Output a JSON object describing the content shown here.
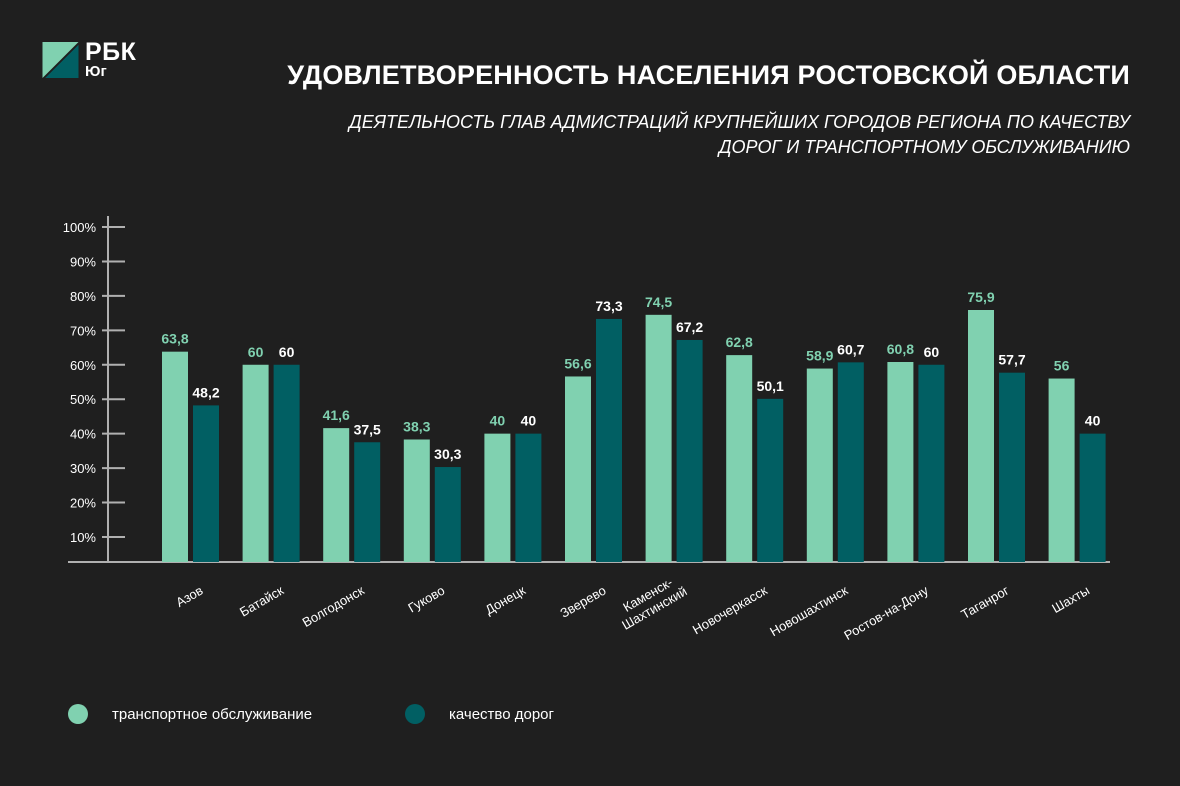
{
  "logo": {
    "name": "РБК",
    "sub": "Юг"
  },
  "title": "УДОВЛЕТВОРЕННОСТЬ НАСЕЛЕНИЯ РОСТОВСКОЙ ОБЛАСТИ",
  "subtitle": "ДЕЯТЕЛЬНОСТЬ ГЛАВ АДМИСТРАЦИЙ КРУПНЕЙШИХ ГОРОДОВ РЕГИОНА ПО КАЧЕСТВУ ДОРОГ И ТРАНСПОРТНОМУ ОБСЛУЖИВАНИЮ",
  "colors": {
    "transport": "#80d1b0",
    "roads": "#015f63",
    "background": "#1f1f1f",
    "axis": "#b0b0b0"
  },
  "chart_data": {
    "type": "bar",
    "categories": [
      "Азов",
      "Батайск",
      "Волгодонск",
      "Гуково",
      "Донецк",
      "Зверево",
      "Каменск-Шахтинский",
      "Новочеркасск",
      "Новошахтинск",
      "Ростов-на-Дону",
      "Таганрог",
      "Шахты"
    ],
    "category_lines": [
      [
        "Азов"
      ],
      [
        "Батайск"
      ],
      [
        "Волгодонск"
      ],
      [
        "Гуково"
      ],
      [
        "Донецк"
      ],
      [
        "Зверево"
      ],
      [
        "Каменск-",
        "Шахтинский"
      ],
      [
        "Новочеркасск"
      ],
      [
        "Новошахтинск"
      ],
      [
        "Ростов-на-Дону"
      ],
      [
        "Таганрог"
      ],
      [
        "Шахты"
      ]
    ],
    "series": [
      {
        "name": "транспортное обслуживание",
        "values": [
          63.8,
          60,
          41.6,
          38.3,
          40,
          56.6,
          74.5,
          62.8,
          58.9,
          60.8,
          75.9,
          56
        ],
        "labels": [
          "63,8",
          "60",
          "41,6",
          "38,3",
          "40",
          "56,6",
          "74,5",
          "62,8",
          "58,9",
          "60,8",
          "75,9",
          "56"
        ]
      },
      {
        "name": "качество дорог",
        "values": [
          48.2,
          60,
          37.5,
          30.3,
          40,
          73.3,
          67.2,
          50.1,
          60.7,
          60,
          57.7,
          40
        ],
        "labels": [
          "48,2",
          "60",
          "37,5",
          "30,3",
          "40",
          "73,3",
          "67,2",
          "50,1",
          "60,7",
          "60",
          "57,7",
          "40"
        ]
      }
    ],
    "yticks": [
      "10%",
      "20%",
      "30%",
      "40%",
      "50%",
      "60%",
      "70%",
      "80%",
      "90%",
      "100%"
    ],
    "ylim": [
      0,
      100
    ],
    "grid": false,
    "legend": "bottom-left"
  }
}
